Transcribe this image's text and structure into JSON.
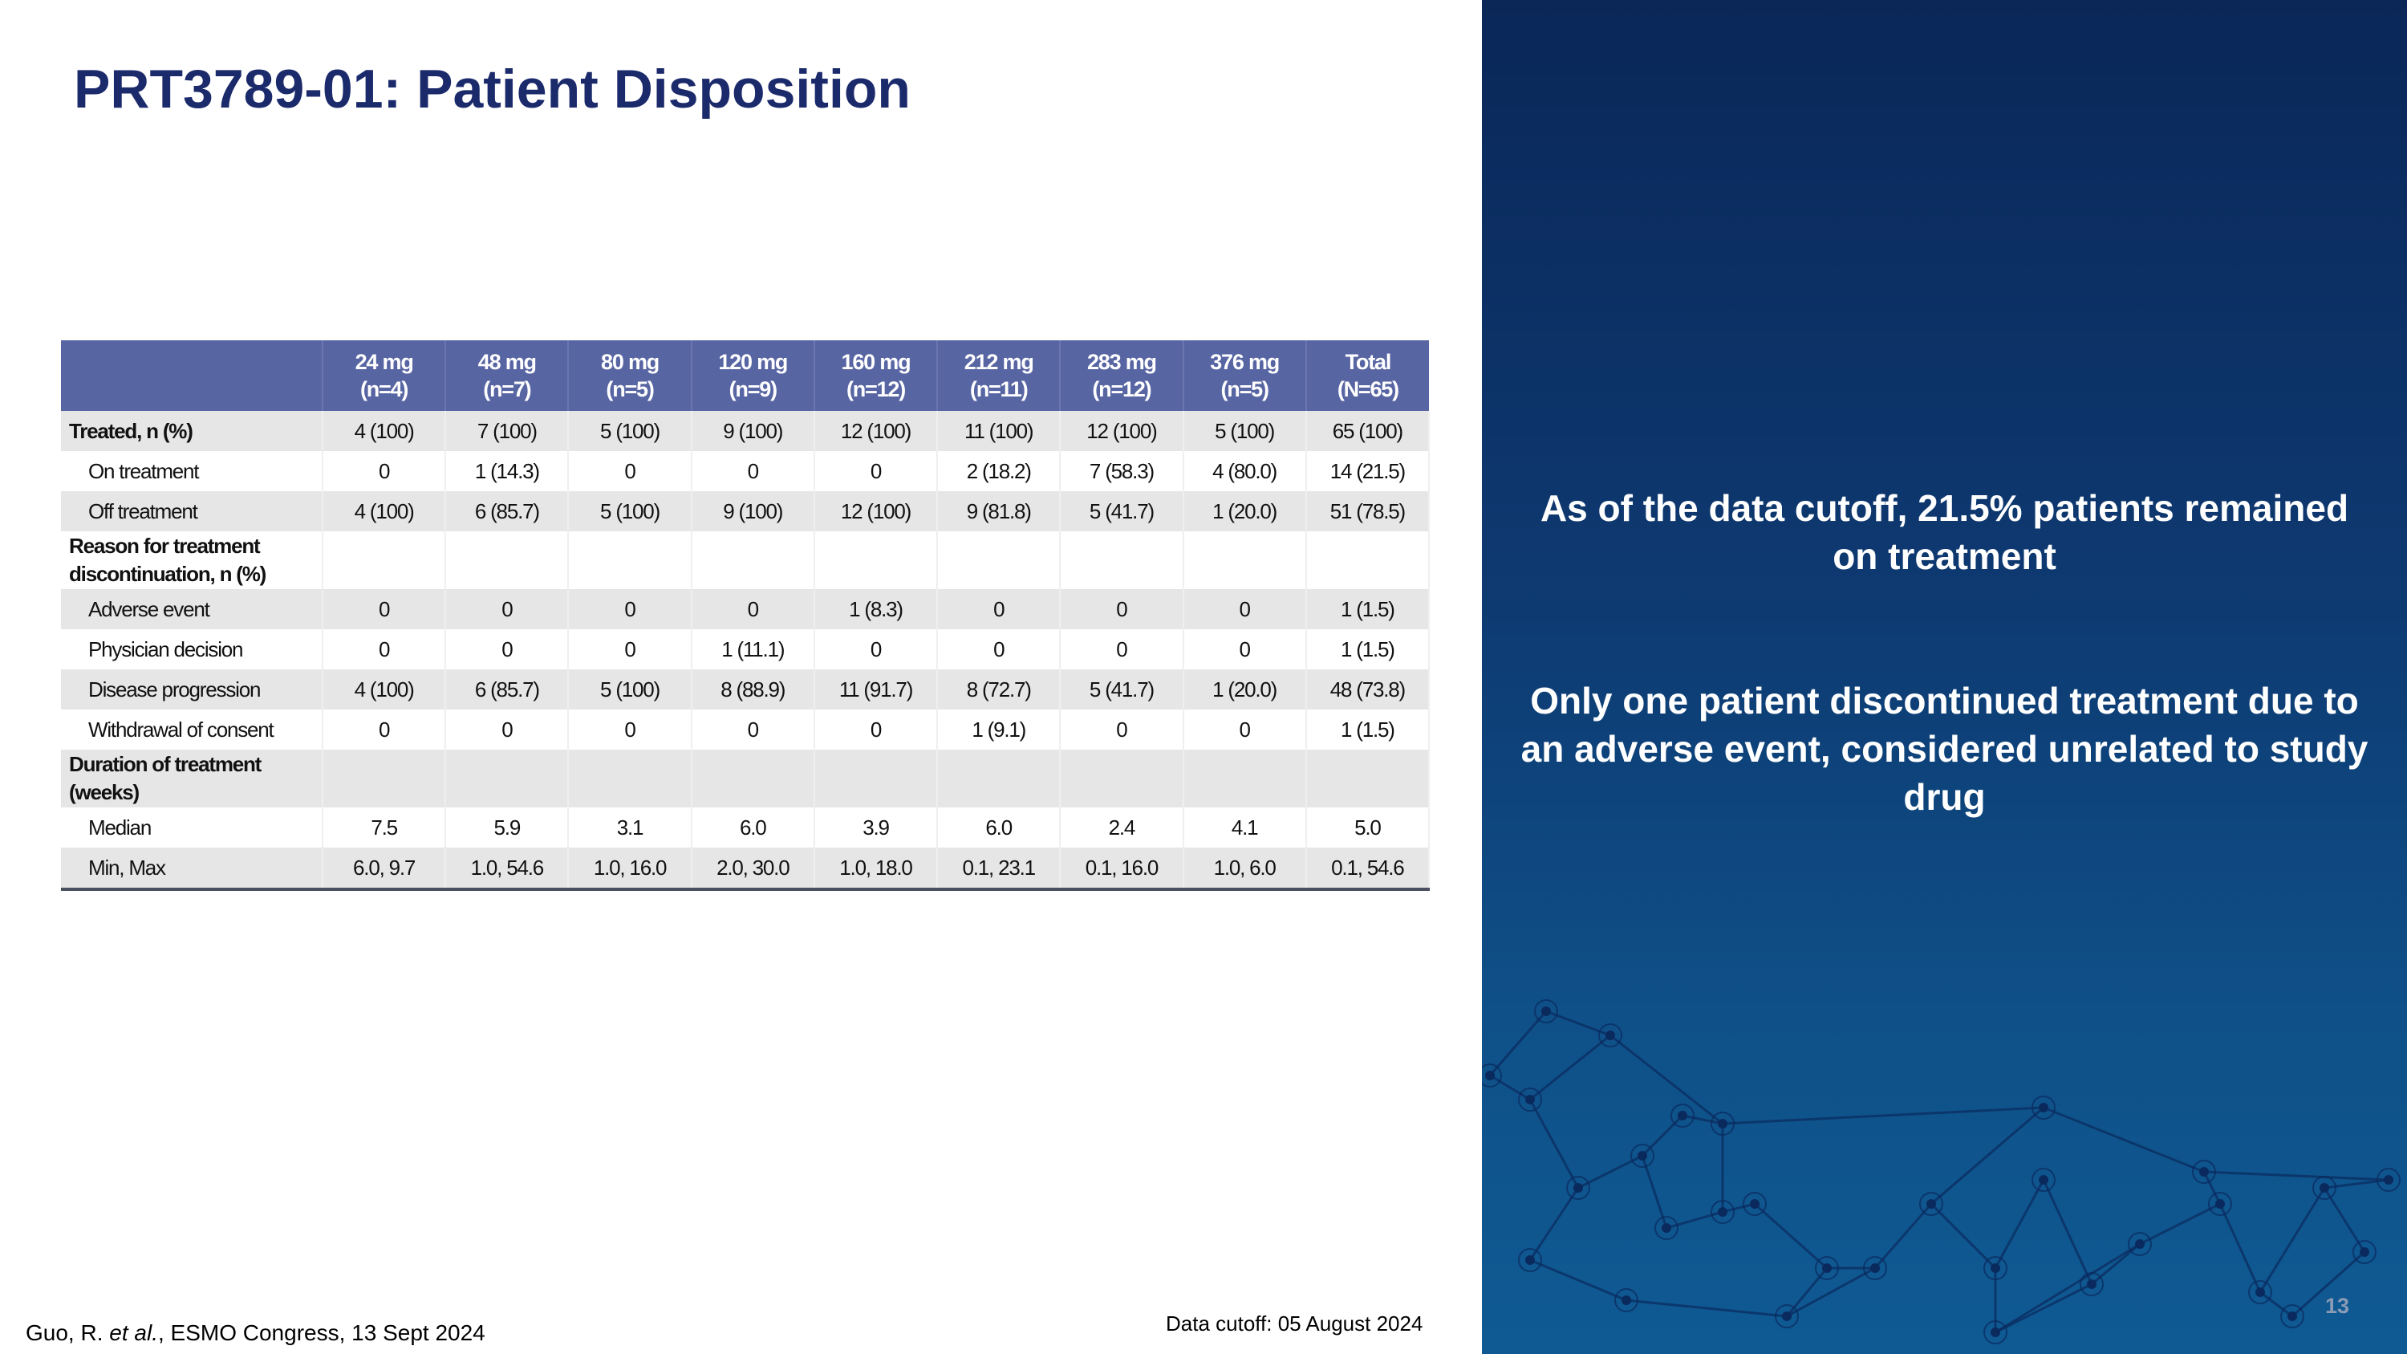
{
  "title": "PRT3789-01: Patient Disposition",
  "table": {
    "columns": [
      {
        "dose": "24 mg",
        "n": "(n=4)"
      },
      {
        "dose": "48 mg",
        "n": "(n=7)"
      },
      {
        "dose": "80 mg",
        "n": "(n=5)"
      },
      {
        "dose": "120 mg",
        "n": "(n=9)"
      },
      {
        "dose": "160 mg",
        "n": "(n=12)"
      },
      {
        "dose": "212 mg",
        "n": "(n=11)"
      },
      {
        "dose": "283 mg",
        "n": "(n=12)"
      },
      {
        "dose": "376 mg",
        "n": "(n=5)"
      },
      {
        "dose": "Total",
        "n": "(N=65)"
      }
    ],
    "rows": [
      {
        "label": "Treated, n (%)",
        "type": "bold",
        "values": [
          "4 (100)",
          "7 (100)",
          "5 (100)",
          "9 (100)",
          "12 (100)",
          "11 (100)",
          "12 (100)",
          "5 (100)",
          "65 (100)"
        ]
      },
      {
        "label": "On treatment",
        "type": "sub",
        "values": [
          "0",
          "1 (14.3)",
          "0",
          "0",
          "0",
          "2 (18.2)",
          "7 (58.3)",
          "4 (80.0)",
          "14 (21.5)"
        ]
      },
      {
        "label": "Off treatment",
        "type": "sub",
        "values": [
          "4 (100)",
          "6 (85.7)",
          "5 (100)",
          "9 (100)",
          "12 (100)",
          "9 (81.8)",
          "5 (41.7)",
          "1 (20.0)",
          "51 (78.5)"
        ]
      },
      {
        "label": "Reason for treatment discontinuation, n (%)",
        "type": "head",
        "values": []
      },
      {
        "label": "Adverse event",
        "type": "sub",
        "values": [
          "0",
          "0",
          "0",
          "0",
          "1 (8.3)",
          "0",
          "0",
          "0",
          "1 (1.5)"
        ]
      },
      {
        "label": "Physician decision",
        "type": "sub",
        "values": [
          "0",
          "0",
          "0",
          "1 (11.1)",
          "0",
          "0",
          "0",
          "0",
          "1 (1.5)"
        ]
      },
      {
        "label": "Disease progression",
        "type": "sub",
        "values": [
          "4 (100)",
          "6 (85.7)",
          "5 (100)",
          "8 (88.9)",
          "11 (91.7)",
          "8 (72.7)",
          "5 (41.7)",
          "1 (20.0)",
          "48 (73.8)"
        ]
      },
      {
        "label": "Withdrawal of consent",
        "type": "sub",
        "values": [
          "0",
          "0",
          "0",
          "0",
          "0",
          "1 (9.1)",
          "0",
          "0",
          "1 (1.5)"
        ]
      },
      {
        "label": "Duration of treatment (weeks)",
        "type": "head",
        "values": []
      },
      {
        "label": "Median",
        "type": "sub",
        "values": [
          "7.5",
          "5.9",
          "3.1",
          "6.0",
          "3.9",
          "6.0",
          "2.4",
          "4.1",
          "5.0"
        ]
      },
      {
        "label": "Min, Max",
        "type": "sub",
        "values": [
          "6.0, 9.7",
          "1.0, 54.6",
          "1.0, 16.0",
          "2.0, 30.0",
          "1.0, 18.0",
          "0.1, 23.1",
          "0.1, 16.0",
          "1.0, 6.0",
          "0.1, 54.6"
        ]
      }
    ]
  },
  "panel": {
    "message1": "As of the data cutoff, 21.5% patients remained on treatment",
    "message2": "Only one patient discontinued treatment due to an adverse event, considered unrelated to study drug",
    "page_number": "13"
  },
  "footer": {
    "citation_author": "Guo, R. ",
    "citation_etal": "et al.",
    "citation_rest": ", ESMO Congress, 13 Sept 2024",
    "data_cutoff": "Data cutoff: 05 August 2024"
  },
  "colors": {
    "title": "#1b2a6b",
    "header_bg": "#5865a3",
    "panel_bg": "#0e3a72"
  }
}
